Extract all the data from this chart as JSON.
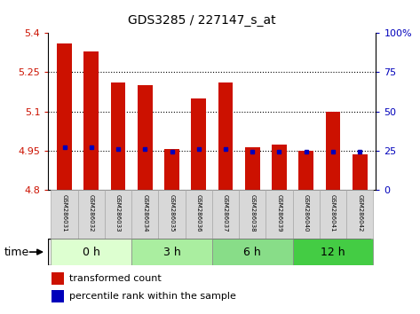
{
  "title": "GDS3285 / 227147_s_at",
  "samples": [
    "GSM286031",
    "GSM286032",
    "GSM286033",
    "GSM286034",
    "GSM286035",
    "GSM286036",
    "GSM286037",
    "GSM286038",
    "GSM286039",
    "GSM286040",
    "GSM286041",
    "GSM286042"
  ],
  "transformed_counts": [
    5.36,
    5.33,
    5.21,
    5.2,
    4.955,
    5.15,
    5.21,
    4.963,
    4.975,
    4.95,
    5.1,
    4.935
  ],
  "percentile_y_values": [
    4.963,
    4.963,
    4.955,
    4.955,
    4.948,
    4.955,
    4.955,
    4.948,
    4.948,
    4.948,
    4.948,
    4.948
  ],
  "bar_bottom": 4.8,
  "ylim": [
    4.8,
    5.4
  ],
  "yticks": [
    4.8,
    4.95,
    5.1,
    5.25,
    5.4
  ],
  "ytick_labels": [
    "4.8",
    "4.95",
    "5.1",
    "5.25",
    "5.4"
  ],
  "right_yticks": [
    0,
    25,
    50,
    75,
    100
  ],
  "right_ytick_labels": [
    "0",
    "25",
    "50",
    "75",
    "100%"
  ],
  "bar_color": "#cc1100",
  "dot_color": "#0000bb",
  "bar_width": 0.55,
  "groups": [
    {
      "label": "0 h",
      "samples": [
        0,
        1,
        2
      ],
      "color": "#ddffd0"
    },
    {
      "label": "3 h",
      "samples": [
        3,
        4,
        5
      ],
      "color": "#aaeea0"
    },
    {
      "label": "6 h",
      "samples": [
        6,
        7,
        8
      ],
      "color": "#88dd88"
    },
    {
      "label": "12 h",
      "samples": [
        9,
        10,
        11
      ],
      "color": "#44cc44"
    }
  ],
  "sample_box_color": "#d8d8d8",
  "time_label": "time",
  "legend_red_label": "transformed count",
  "legend_blue_label": "percentile rank within the sample"
}
